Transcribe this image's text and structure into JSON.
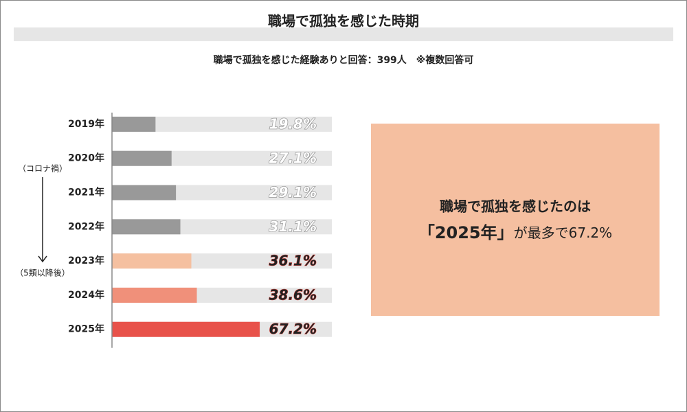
{
  "chart_data": {
    "type": "bar",
    "orientation": "horizontal",
    "title": "職場で孤独を感じた時期",
    "subtitle": "職場で孤独を感じた経験ありと回答：399人　※複数回答可",
    "categories": [
      "2019年",
      "2020年",
      "2021年",
      "2022年",
      "2023年",
      "2024年",
      "2025年"
    ],
    "values": [
      19.8,
      27.1,
      29.1,
      31.1,
      36.1,
      38.6,
      67.2
    ],
    "value_labels": [
      "19.8%",
      "27.1%",
      "29.1%",
      "31.1%",
      "36.1%",
      "38.6%",
      "67.2%"
    ],
    "colors": [
      "#999999",
      "#999999",
      "#999999",
      "#999999",
      "#f5c0a0",
      "#f0907a",
      "#e8524a"
    ],
    "value_label_colors": [
      "#ffffff",
      "#ffffff",
      "#ffffff",
      "#ffffff",
      "#222222",
      "#222222",
      "#222222"
    ],
    "track_color": "#e6e6e6",
    "xlim": [
      0,
      100
    ],
    "annotations": [
      "（コロナ禍）",
      "（5類以降後）"
    ],
    "callout": {
      "line1": "職場で孤独を感じたのは",
      "line2_emphasis": "「2025年」",
      "line2_rest": "が最多で67.2%",
      "color": "#f5bfa0"
    }
  }
}
